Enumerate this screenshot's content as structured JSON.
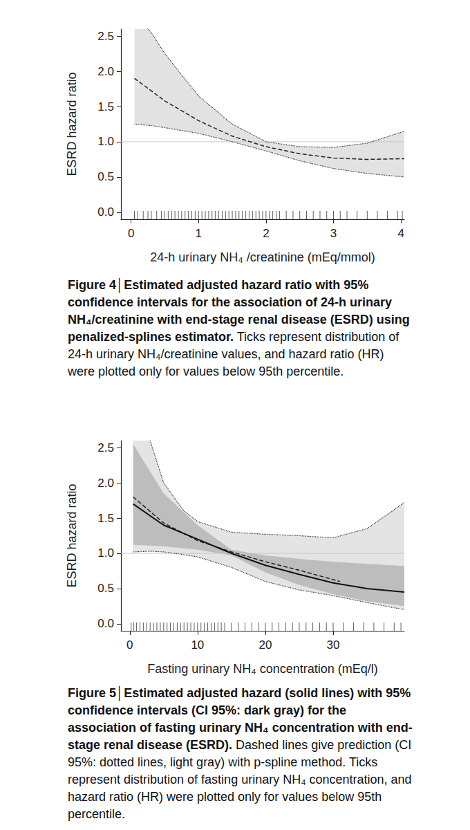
{
  "chart_data": [
    {
      "type": "line",
      "x_label": "24-h urinary NH₄ /creatinine (mEq/mmol)",
      "y_label": "ESRD hazard ratio",
      "xlim": [
        -0.15,
        4.05
      ],
      "xticks": [
        0,
        1,
        2,
        3,
        4
      ],
      "ylim": [
        -0.1,
        2.6
      ],
      "yticks": [
        {
          "value": 0,
          "label": "0.0"
        },
        {
          "value": 0.5,
          "label": "0.5"
        },
        {
          "value": 1,
          "label": "1.0"
        },
        {
          "value": 1.5,
          "label": "1.5"
        },
        {
          "value": 2,
          "label": "2.0"
        },
        {
          "value": 2.5,
          "label": "2.5"
        }
      ],
      "grid": false,
      "reference_line": 1,
      "rug": [
        0.05,
        0.1,
        0.18,
        0.25,
        0.3,
        0.38,
        0.45,
        0.5,
        0.55,
        0.6,
        0.65,
        0.7,
        0.75,
        0.8,
        0.85,
        0.9,
        0.95,
        1.0,
        1.05,
        1.1,
        1.15,
        1.2,
        1.25,
        1.3,
        1.35,
        1.4,
        1.45,
        1.5,
        1.55,
        1.6,
        1.65,
        1.7,
        1.75,
        1.8,
        1.85,
        1.9,
        1.95,
        2.0,
        2.05,
        2.1,
        2.15,
        2.2,
        2.3,
        2.4,
        2.5,
        2.6,
        2.7,
        2.8,
        2.9,
        3.0,
        3.1,
        3.2,
        3.35,
        3.5,
        3.65,
        3.8,
        3.95,
        4.02
      ],
      "series": [
        {
          "type": "band",
          "color": "#e2e2e2",
          "line_style": "dotted",
          "x": [
            0.05,
            0.3,
            0.5,
            1.0,
            1.5,
            2.0,
            2.5,
            3.0,
            3.5,
            4.05
          ],
          "lower": [
            1.25,
            1.23,
            1.2,
            1.12,
            1.0,
            0.87,
            0.73,
            0.62,
            0.55,
            0.5
          ],
          "upper": [
            2.8,
            2.55,
            2.25,
            1.65,
            1.25,
            1.0,
            0.93,
            0.92,
            0.98,
            1.15
          ]
        },
        {
          "type": "line",
          "color": "#222222",
          "line_style": "dashed",
          "x": [
            0.05,
            0.5,
            1.0,
            1.5,
            2.0,
            2.5,
            3.0,
            3.5,
            4.05
          ],
          "values": [
            1.9,
            1.58,
            1.3,
            1.08,
            0.93,
            0.83,
            0.77,
            0.75,
            0.76
          ]
        }
      ],
      "caption": {
        "title": "Figure 4│Estimated adjusted hazard ratio with 95% confidence intervals for the association of 24-h urinary NH₄/creatinine with end-stage renal disease (ESRD) using penalized-splines estimator.",
        "text": "Ticks represent distribution of 24-h urinary NH₄/creatinine values, and hazard ratio (HR) were plotted only for values below 95th percentile."
      }
    },
    {
      "type": "line",
      "x_label": "Fasting urinary NH₄ concentration (mEq/l)",
      "y_label": "ESRD hazard ratio",
      "xlim": [
        -1.3,
        40.5
      ],
      "xticks": [
        0,
        10,
        20,
        30
      ],
      "ylim": [
        -0.1,
        2.6
      ],
      "yticks": [
        {
          "value": 0,
          "label": "0.0"
        },
        {
          "value": 0.5,
          "label": "0.5"
        },
        {
          "value": 1,
          "label": "1.0"
        },
        {
          "value": 1.5,
          "label": "1.5"
        },
        {
          "value": 2,
          "label": "2.0"
        },
        {
          "value": 2.5,
          "label": "2.5"
        }
      ],
      "grid": false,
      "reference_line": 1,
      "rug": [
        0.2,
        0.6,
        1,
        1.5,
        2,
        2.5,
        3,
        3.5,
        4,
        4.5,
        5,
        5.5,
        6,
        6.5,
        7,
        7.5,
        8,
        8.5,
        9,
        9.5,
        10,
        10.5,
        11,
        11.5,
        12,
        12.5,
        13,
        13.5,
        14,
        15,
        16,
        17,
        18,
        19,
        20,
        21,
        22,
        23,
        24,
        25,
        26,
        27,
        28,
        29,
        30,
        31.5,
        33,
        34.5,
        36,
        37.5,
        39,
        40
      ],
      "series": [
        {
          "type": "band",
          "color": "#e4e4e4",
          "line_style": "dotted",
          "x": [
            0.5,
            3,
            5,
            8,
            10,
            15,
            20,
            25,
            30,
            35,
            40.5
          ],
          "lower": [
            1.02,
            1.03,
            1.02,
            0.98,
            0.95,
            0.8,
            0.6,
            0.48,
            0.4,
            0.3,
            0.2
          ],
          "upper": [
            2.75,
            2.6,
            2.0,
            1.6,
            1.45,
            1.3,
            1.27,
            1.25,
            1.22,
            1.35,
            1.72
          ]
        },
        {
          "type": "band",
          "color": "#bdbdbd",
          "x": [
            0.5,
            5,
            10,
            15,
            20,
            25,
            30,
            35,
            40.5
          ],
          "lower": [
            1.12,
            1.1,
            1.05,
            0.97,
            0.73,
            0.55,
            0.42,
            0.32,
            0.25
          ],
          "upper": [
            2.55,
            1.85,
            1.4,
            1.05,
            0.97,
            0.92,
            0.88,
            0.85,
            0.82
          ]
        },
        {
          "type": "line",
          "color": "#222222",
          "line_style": "dashed",
          "x": [
            0.5,
            5,
            10,
            15,
            20,
            25,
            31
          ],
          "values": [
            1.8,
            1.43,
            1.18,
            1.02,
            0.88,
            0.76,
            0.6
          ]
        },
        {
          "type": "line",
          "color": "#111111",
          "line_style": "solid",
          "x": [
            0.5,
            5,
            10,
            15,
            20,
            25,
            30,
            35,
            40.5
          ],
          "values": [
            1.7,
            1.4,
            1.2,
            1.0,
            0.83,
            0.7,
            0.58,
            0.5,
            0.45
          ]
        }
      ],
      "caption": {
        "title": "Figure 5│Estimated adjusted hazard (solid lines) with 95% confidence intervals (CI 95%: dark gray) for the association of fasting urinary NH₄ concentration with end-stage renal disease (ESRD).",
        "text": "Dashed lines give prediction (CI 95%: dotted lines, light gray) with p-spline method. Ticks represent distribution of fasting urinary NH₄ concentration, and hazard ratio (HR) were plotted only for values below 95th percentile."
      }
    }
  ]
}
